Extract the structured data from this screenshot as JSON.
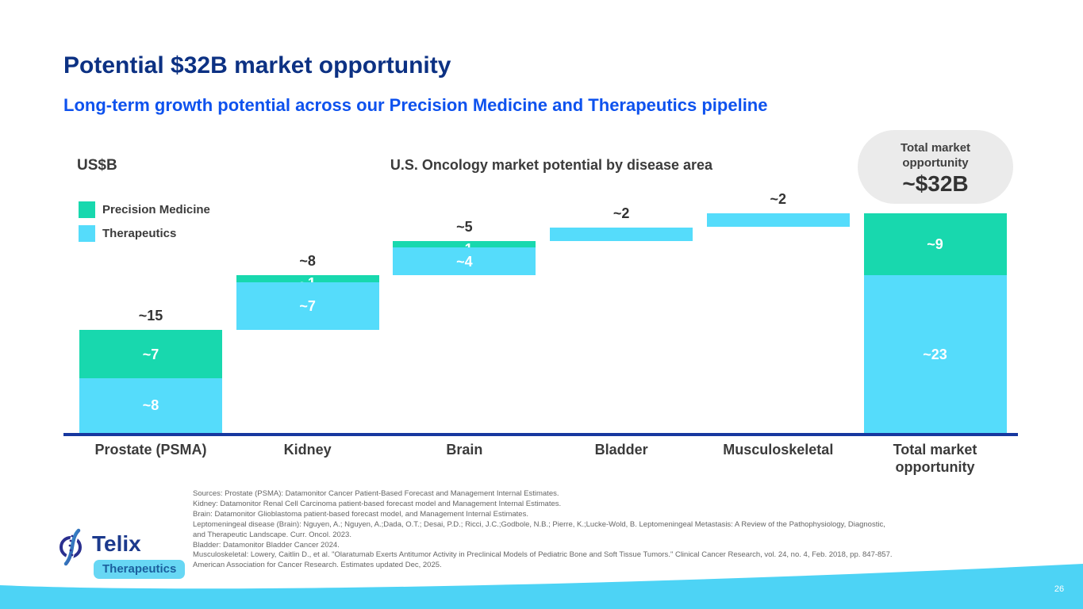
{
  "header": {
    "title": "Potential $32B market opportunity",
    "subtitle": "Long-term growth potential across our Precision Medicine and Therapeutics pipeline"
  },
  "total_bubble": {
    "label": "Total market opportunity",
    "value": "~$32B"
  },
  "chart_data": {
    "type": "bar",
    "variant": "stacked-waterfall",
    "title": "U.S. Oncology market potential by disease area",
    "unit_label": "US$B",
    "ylim": [
      0,
      32
    ],
    "grid": false,
    "legend_position": "top-left",
    "series": [
      {
        "name": "Precision Medicine",
        "color": "#18d8ae"
      },
      {
        "name": "Therapeutics",
        "color": "#55dcfb"
      }
    ],
    "categories": [
      "Prostate (PSMA)",
      "Kidney",
      "Brain",
      "Bladder",
      "Musculoskeletal",
      "Total market opportunity"
    ],
    "bars": [
      {
        "category": "Prostate (PSMA)",
        "total": 15,
        "total_label": "~15",
        "restart": false,
        "segments": [
          {
            "series": "Precision Medicine",
            "value": 7,
            "label": "~7"
          },
          {
            "series": "Therapeutics",
            "value": 8,
            "label": "~8"
          }
        ]
      },
      {
        "category": "Kidney",
        "total": 8,
        "total_label": "~8",
        "restart": false,
        "segments": [
          {
            "series": "Precision Medicine",
            "value": 1,
            "label": "~1"
          },
          {
            "series": "Therapeutics",
            "value": 7,
            "label": "~7"
          }
        ]
      },
      {
        "category": "Brain",
        "total": 5,
        "total_label": "~5",
        "restart": false,
        "segments": [
          {
            "series": "Precision Medicine",
            "value": 1,
            "label": "~1"
          },
          {
            "series": "Therapeutics",
            "value": 4,
            "label": "~4"
          }
        ]
      },
      {
        "category": "Bladder",
        "total": 2,
        "total_label": "~2",
        "restart": false,
        "segments": [
          {
            "series": "Therapeutics",
            "value": 2,
            "label": ""
          }
        ]
      },
      {
        "category": "Musculoskeletal",
        "total": 2,
        "total_label": "~2",
        "restart": false,
        "segments": [
          {
            "series": "Therapeutics",
            "value": 2,
            "label": ""
          }
        ]
      },
      {
        "category": "Total market opportunity",
        "total": 32,
        "total_label": "",
        "restart": true,
        "segments": [
          {
            "series": "Precision Medicine",
            "value": 9,
            "label": "~9"
          },
          {
            "series": "Therapeutics",
            "value": 23,
            "label": "~23"
          }
        ]
      }
    ]
  },
  "sources": {
    "lines": [
      "Sources: Prostate (PSMA): Datamonitor Cancer Patient-Based Forecast and Management Internal Estimates.",
      "Kidney: Datamonitor  Renal Cell Carcinoma patient-based forecast model and Management Internal Estimates.",
      "Brain: Datamonitor Glioblastoma patient-based forecast model, and Management Internal Estimates.",
      "Leptomeningeal disease (Brain): Nguyen, A.; Nguyen, A.;Dada, O.T.; Desai, P.D.; Ricci, J.C.;Godbole, N.B.; Pierre, K.;Lucke-Wold, B. Leptomeningeal Metastasis: A Review of the Pathophysiology, Diagnostic,",
      "and Therapeutic Landscape. Curr. Oncol. 2023.",
      "Bladder: Datamonitor Bladder Cancer 2024.",
      "Musculoskeletal: Lowery, Caitlin D., et al. \"Olaratumab Exerts Antitumor Activity in Preclinical Models of Pediatric Bone and Soft Tissue Tumors.\" Clinical Cancer Research, vol. 24, no. 4, Feb. 2018, pp. 847-857.",
      "American Association for Cancer Research. Estimates updated Dec, 2025."
    ]
  },
  "logo": {
    "name": "Telix",
    "tagline": "Therapeutics"
  },
  "footer": {
    "page_number": "26"
  }
}
